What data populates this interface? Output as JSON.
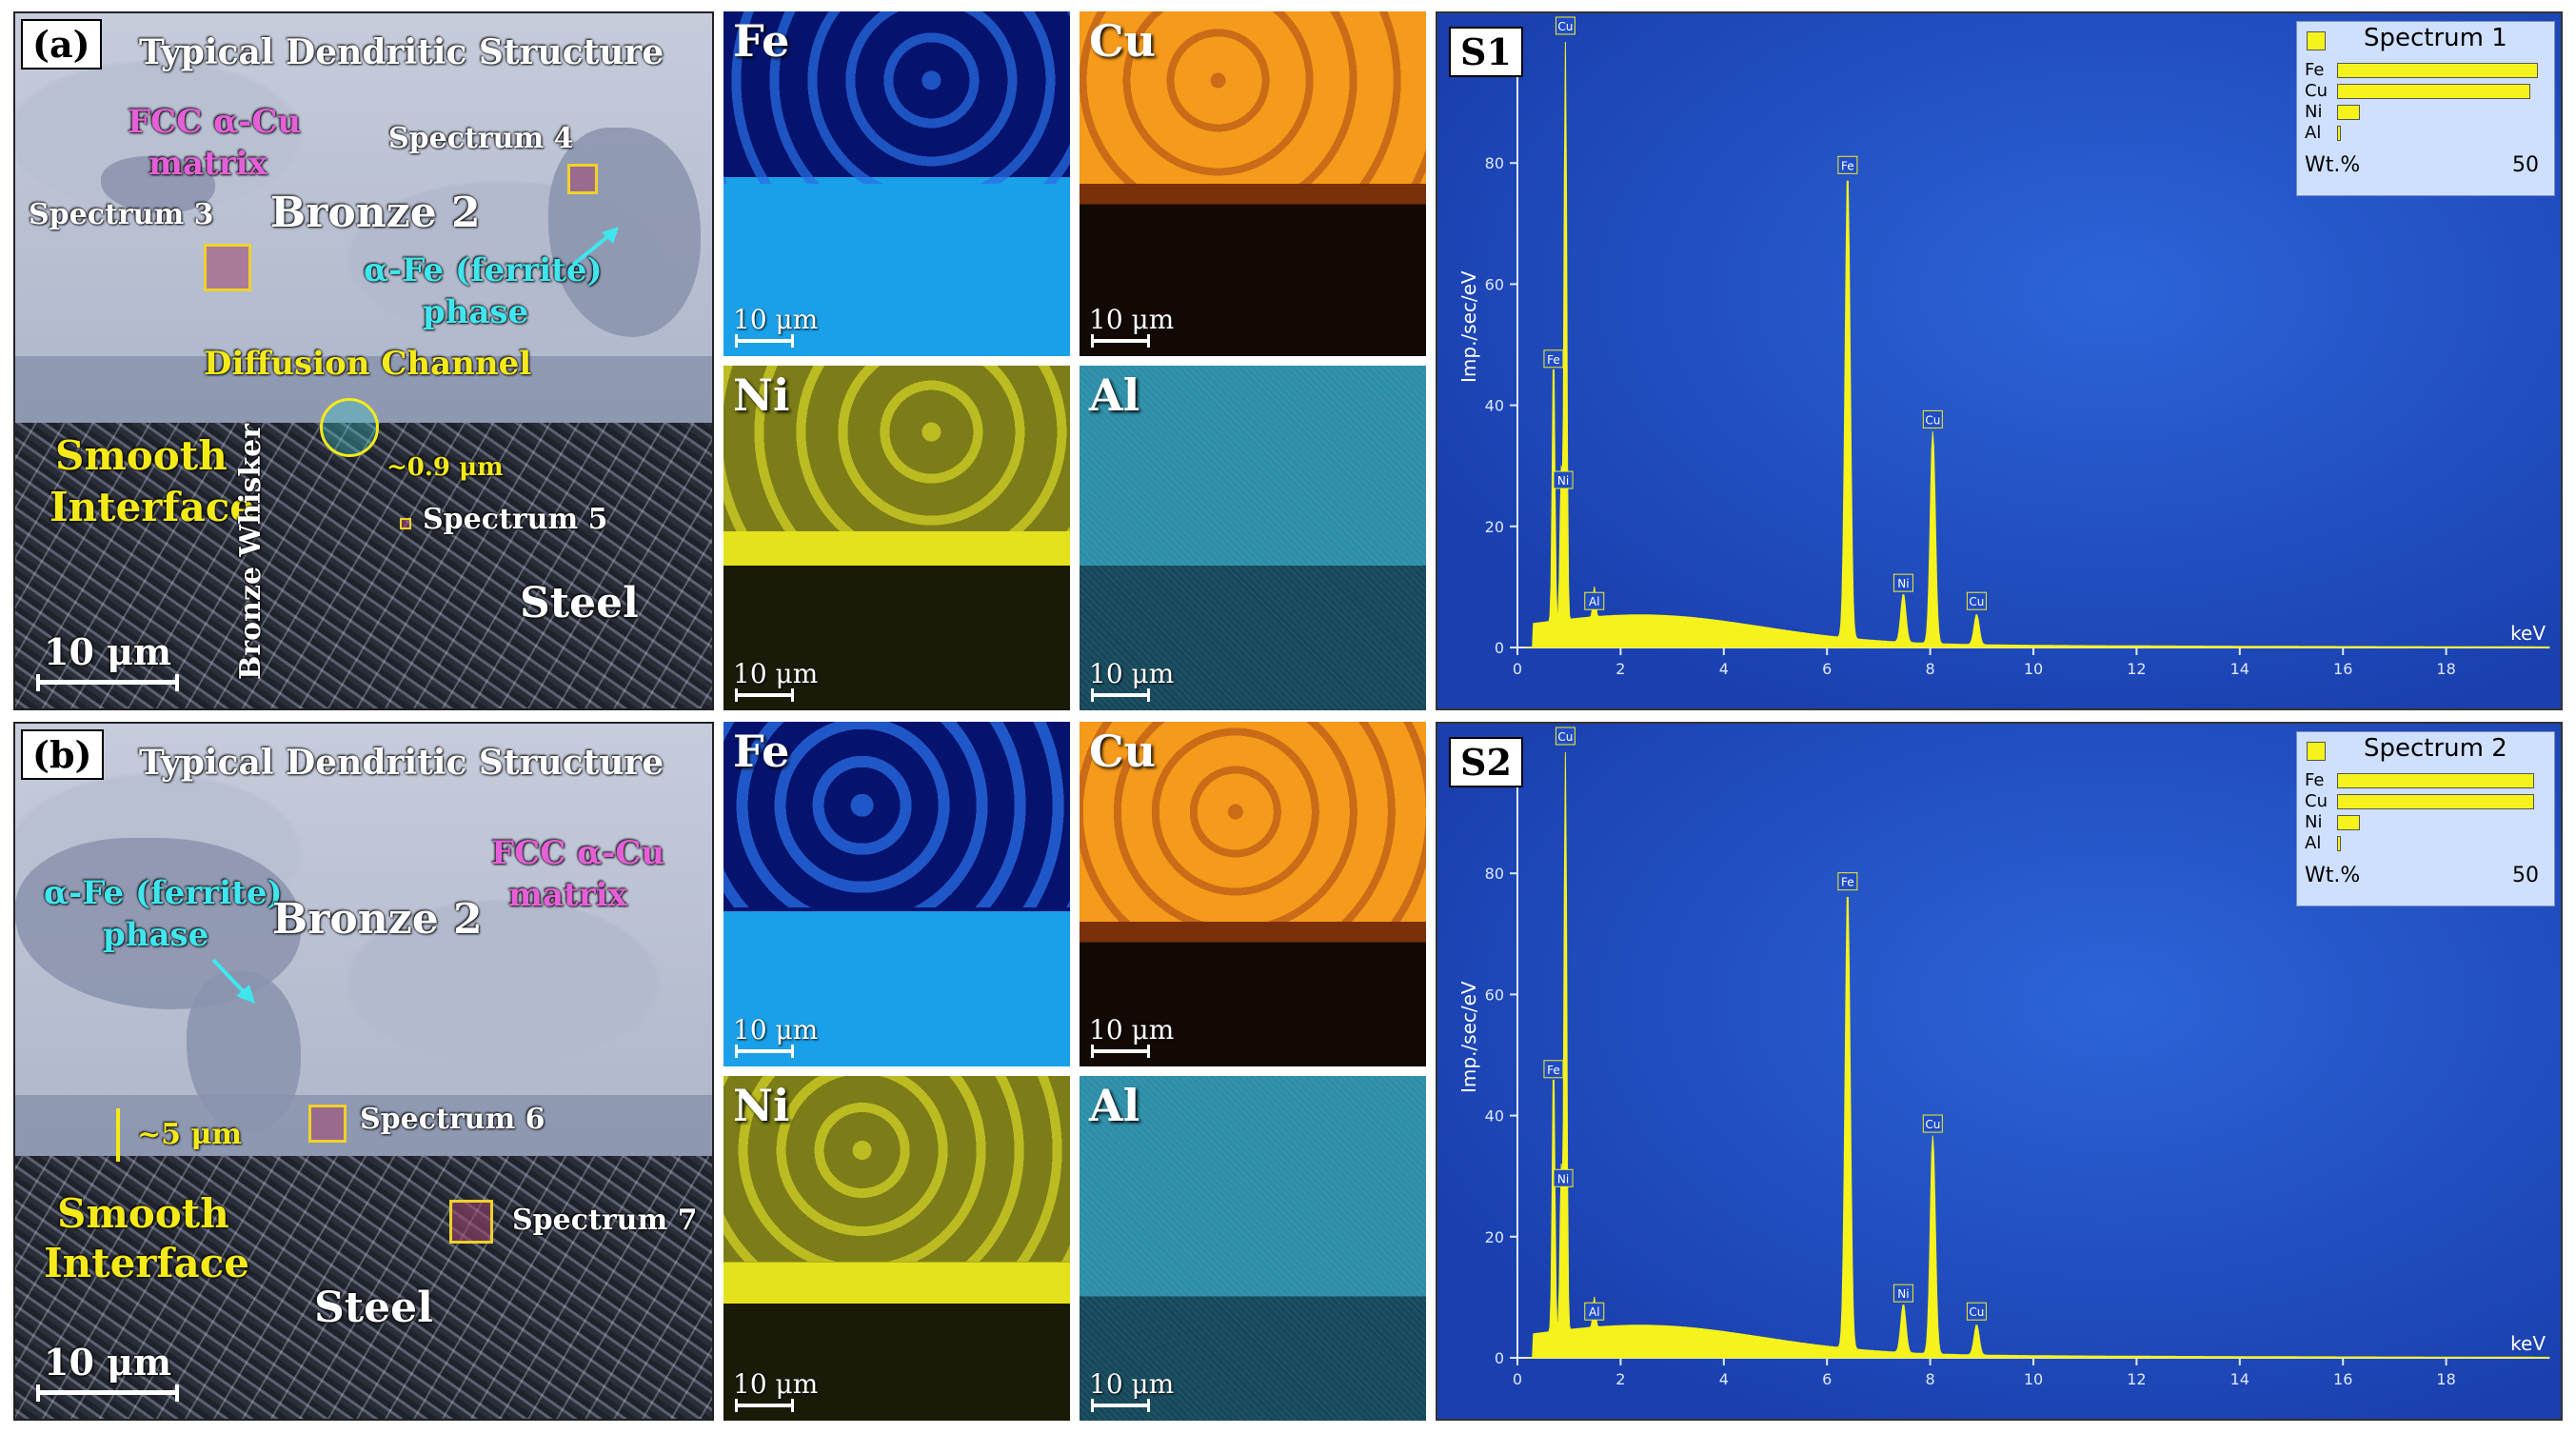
{
  "colors": {
    "yellow_label": "#f4ea1a",
    "pink_label": "#e65fd8",
    "cyan_label": "#3fe6ee",
    "spectrum_fill": "#f6f21c",
    "spectrum_bg": "#1f4cc4"
  },
  "panel_a": {
    "tag": "(a)",
    "title": "Typical Dendritic Structure",
    "fcc_line1": "FCC α-Cu",
    "fcc_line2": "matrix",
    "spectrum4": "Spectrum 4",
    "spectrum3": "Spectrum 3",
    "bronze": "Bronze 2",
    "alpha_line1": "α-Fe (ferrite)",
    "alpha_line2": "phase",
    "diffusion": "Diffusion Channel",
    "smooth_line1": "Smooth",
    "smooth_line2": "Interface",
    "whisker": "Bronze Whisker",
    "width": "~0.9 μm",
    "spectrum5": "Spectrum 5",
    "steel": "Steel",
    "scale": "10  μm"
  },
  "panel_b": {
    "tag": "(b)",
    "title": "Typical Dendritic Structure",
    "fcc_line1": "FCC α-Cu",
    "fcc_line2": "matrix",
    "alpha_line1": "α-Fe (ferrite)",
    "alpha_line2": "phase",
    "bronze": "Bronze 2",
    "thickness": "~5 μm",
    "spectrum6": "Spectrum 6",
    "spectrum7": "Spectrum 7",
    "smooth_line1": "Smooth",
    "smooth_line2": "Interface",
    "steel": "Steel",
    "scale": "10  μm"
  },
  "maps": {
    "fe": "Fe",
    "cu": "Cu",
    "ni": "Ni",
    "al": "Al",
    "scale": "10 μm"
  },
  "spectra": {
    "s1": {
      "tag": "S1",
      "legend_title": "Spectrum 1",
      "elements": [
        "Fe",
        "Cu",
        "Ni",
        "Al"
      ],
      "wt": [
        48,
        46,
        5,
        0.5
      ],
      "wt_label": "Wt.%",
      "wt_max": "50"
    },
    "s2": {
      "tag": "S2",
      "legend_title": "Spectrum 2",
      "elements": [
        "Fe",
        "Cu",
        "Ni",
        "Al"
      ],
      "wt": [
        47,
        47,
        5,
        0.5
      ],
      "wt_label": "Wt.%",
      "wt_max": "50"
    },
    "ylabel": "Imp./sec/eV",
    "xunit": "keV",
    "yticks": [
      "0",
      "20",
      "40",
      "60",
      "80"
    ],
    "xticks": [
      "0",
      "2",
      "4",
      "6",
      "8",
      "10",
      "12",
      "14",
      "16",
      "18"
    ]
  },
  "chart_data": [
    {
      "type": "line",
      "title": "Spectrum 1",
      "xlabel": "keV",
      "ylabel": "Imp./sec/eV",
      "xlim": [
        0,
        20
      ],
      "ylim": [
        0,
        100
      ],
      "peaks": [
        {
          "label": "Cu",
          "x": 0.93,
          "y": 100
        },
        {
          "label": "Fe",
          "x": 0.7,
          "y": 45
        },
        {
          "label": "Ni",
          "x": 0.85,
          "y": 25
        },
        {
          "label": "Al",
          "x": 1.49,
          "y": 5
        },
        {
          "label": "Fe",
          "x": 6.4,
          "y": 77
        },
        {
          "label": "Ni",
          "x": 7.48,
          "y": 8
        },
        {
          "label": "Cu",
          "x": 8.05,
          "y": 35
        },
        {
          "label": "Cu",
          "x": 8.9,
          "y": 5
        }
      ]
    },
    {
      "type": "line",
      "title": "Spectrum 2",
      "xlabel": "keV",
      "ylabel": "Imp./sec/eV",
      "xlim": [
        0,
        20
      ],
      "ylim": [
        0,
        100
      ],
      "peaks": [
        {
          "label": "Cu",
          "x": 0.93,
          "y": 100
        },
        {
          "label": "Fe",
          "x": 0.7,
          "y": 45
        },
        {
          "label": "Ni",
          "x": 0.85,
          "y": 27
        },
        {
          "label": "Al",
          "x": 1.49,
          "y": 5
        },
        {
          "label": "Fe",
          "x": 6.4,
          "y": 76
        },
        {
          "label": "Ni",
          "x": 7.48,
          "y": 8
        },
        {
          "label": "Cu",
          "x": 8.05,
          "y": 36
        },
        {
          "label": "Cu",
          "x": 8.9,
          "y": 5
        }
      ]
    }
  ]
}
